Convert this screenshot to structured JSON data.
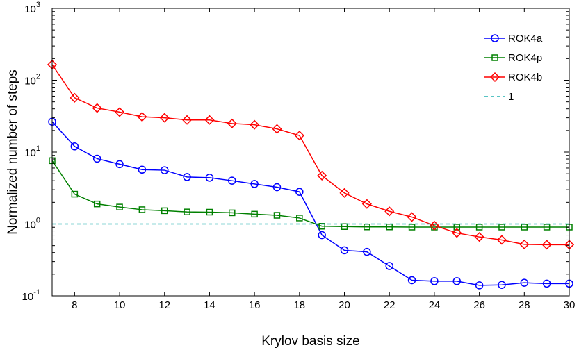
{
  "chart_data": {
    "type": "line",
    "title": "",
    "xlabel": "Krylov basis size",
    "ylabel": "Normalized number of steps",
    "xlim": [
      7,
      30
    ],
    "ylim": [
      0.1,
      1000
    ],
    "yscale": "log",
    "grid": false,
    "legend_position": "top-right",
    "x_ticks": [
      "8",
      "10",
      "12",
      "14",
      "16",
      "18",
      "20",
      "22",
      "24",
      "26",
      "28",
      "30"
    ],
    "y_ticks": [
      {
        "base": "10",
        "exp": "-1"
      },
      {
        "base": "10",
        "exp": "0"
      },
      {
        "base": "10",
        "exp": "1"
      },
      {
        "base": "10",
        "exp": "2"
      },
      {
        "base": "10",
        "exp": "3"
      }
    ],
    "x": [
      7,
      8,
      9,
      10,
      11,
      12,
      13,
      14,
      15,
      16,
      17,
      18,
      19,
      20,
      21,
      22,
      23,
      24,
      25,
      26,
      27,
      28,
      29,
      30
    ],
    "series": [
      {
        "name": "ROK4a",
        "color": "#0000ff",
        "marker": "circle",
        "line": "solid",
        "values": [
          26.5,
          12,
          8.1,
          6.8,
          5.7,
          5.6,
          4.5,
          4.4,
          4.0,
          3.6,
          3.25,
          2.8,
          0.7,
          0.43,
          0.41,
          0.26,
          0.165,
          0.16,
          0.16,
          0.14,
          0.142,
          0.152,
          0.148,
          0.148
        ]
      },
      {
        "name": "ROK4p",
        "color": "#008000",
        "marker": "square",
        "line": "solid",
        "values": [
          7.6,
          2.6,
          1.9,
          1.72,
          1.58,
          1.53,
          1.47,
          1.46,
          1.43,
          1.37,
          1.32,
          1.21,
          0.93,
          0.92,
          0.91,
          0.91,
          0.905,
          0.905,
          0.905,
          0.905,
          0.905,
          0.905,
          0.905,
          0.905
        ]
      },
      {
        "name": "ROK4b",
        "color": "#ff0000",
        "marker": "diamond",
        "line": "solid",
        "values": [
          165,
          57,
          41,
          36,
          31,
          30,
          28,
          28,
          25,
          24,
          21,
          17,
          4.7,
          2.7,
          1.9,
          1.5,
          1.25,
          0.95,
          0.75,
          0.66,
          0.6,
          0.52,
          0.515,
          0.515
        ]
      },
      {
        "name": "1",
        "color": "#20b0b0",
        "marker": "none",
        "line": "dashed",
        "values": [
          1,
          1,
          1,
          1,
          1,
          1,
          1,
          1,
          1,
          1,
          1,
          1,
          1,
          1,
          1,
          1,
          1,
          1,
          1,
          1,
          1,
          1,
          1,
          1
        ]
      }
    ]
  }
}
